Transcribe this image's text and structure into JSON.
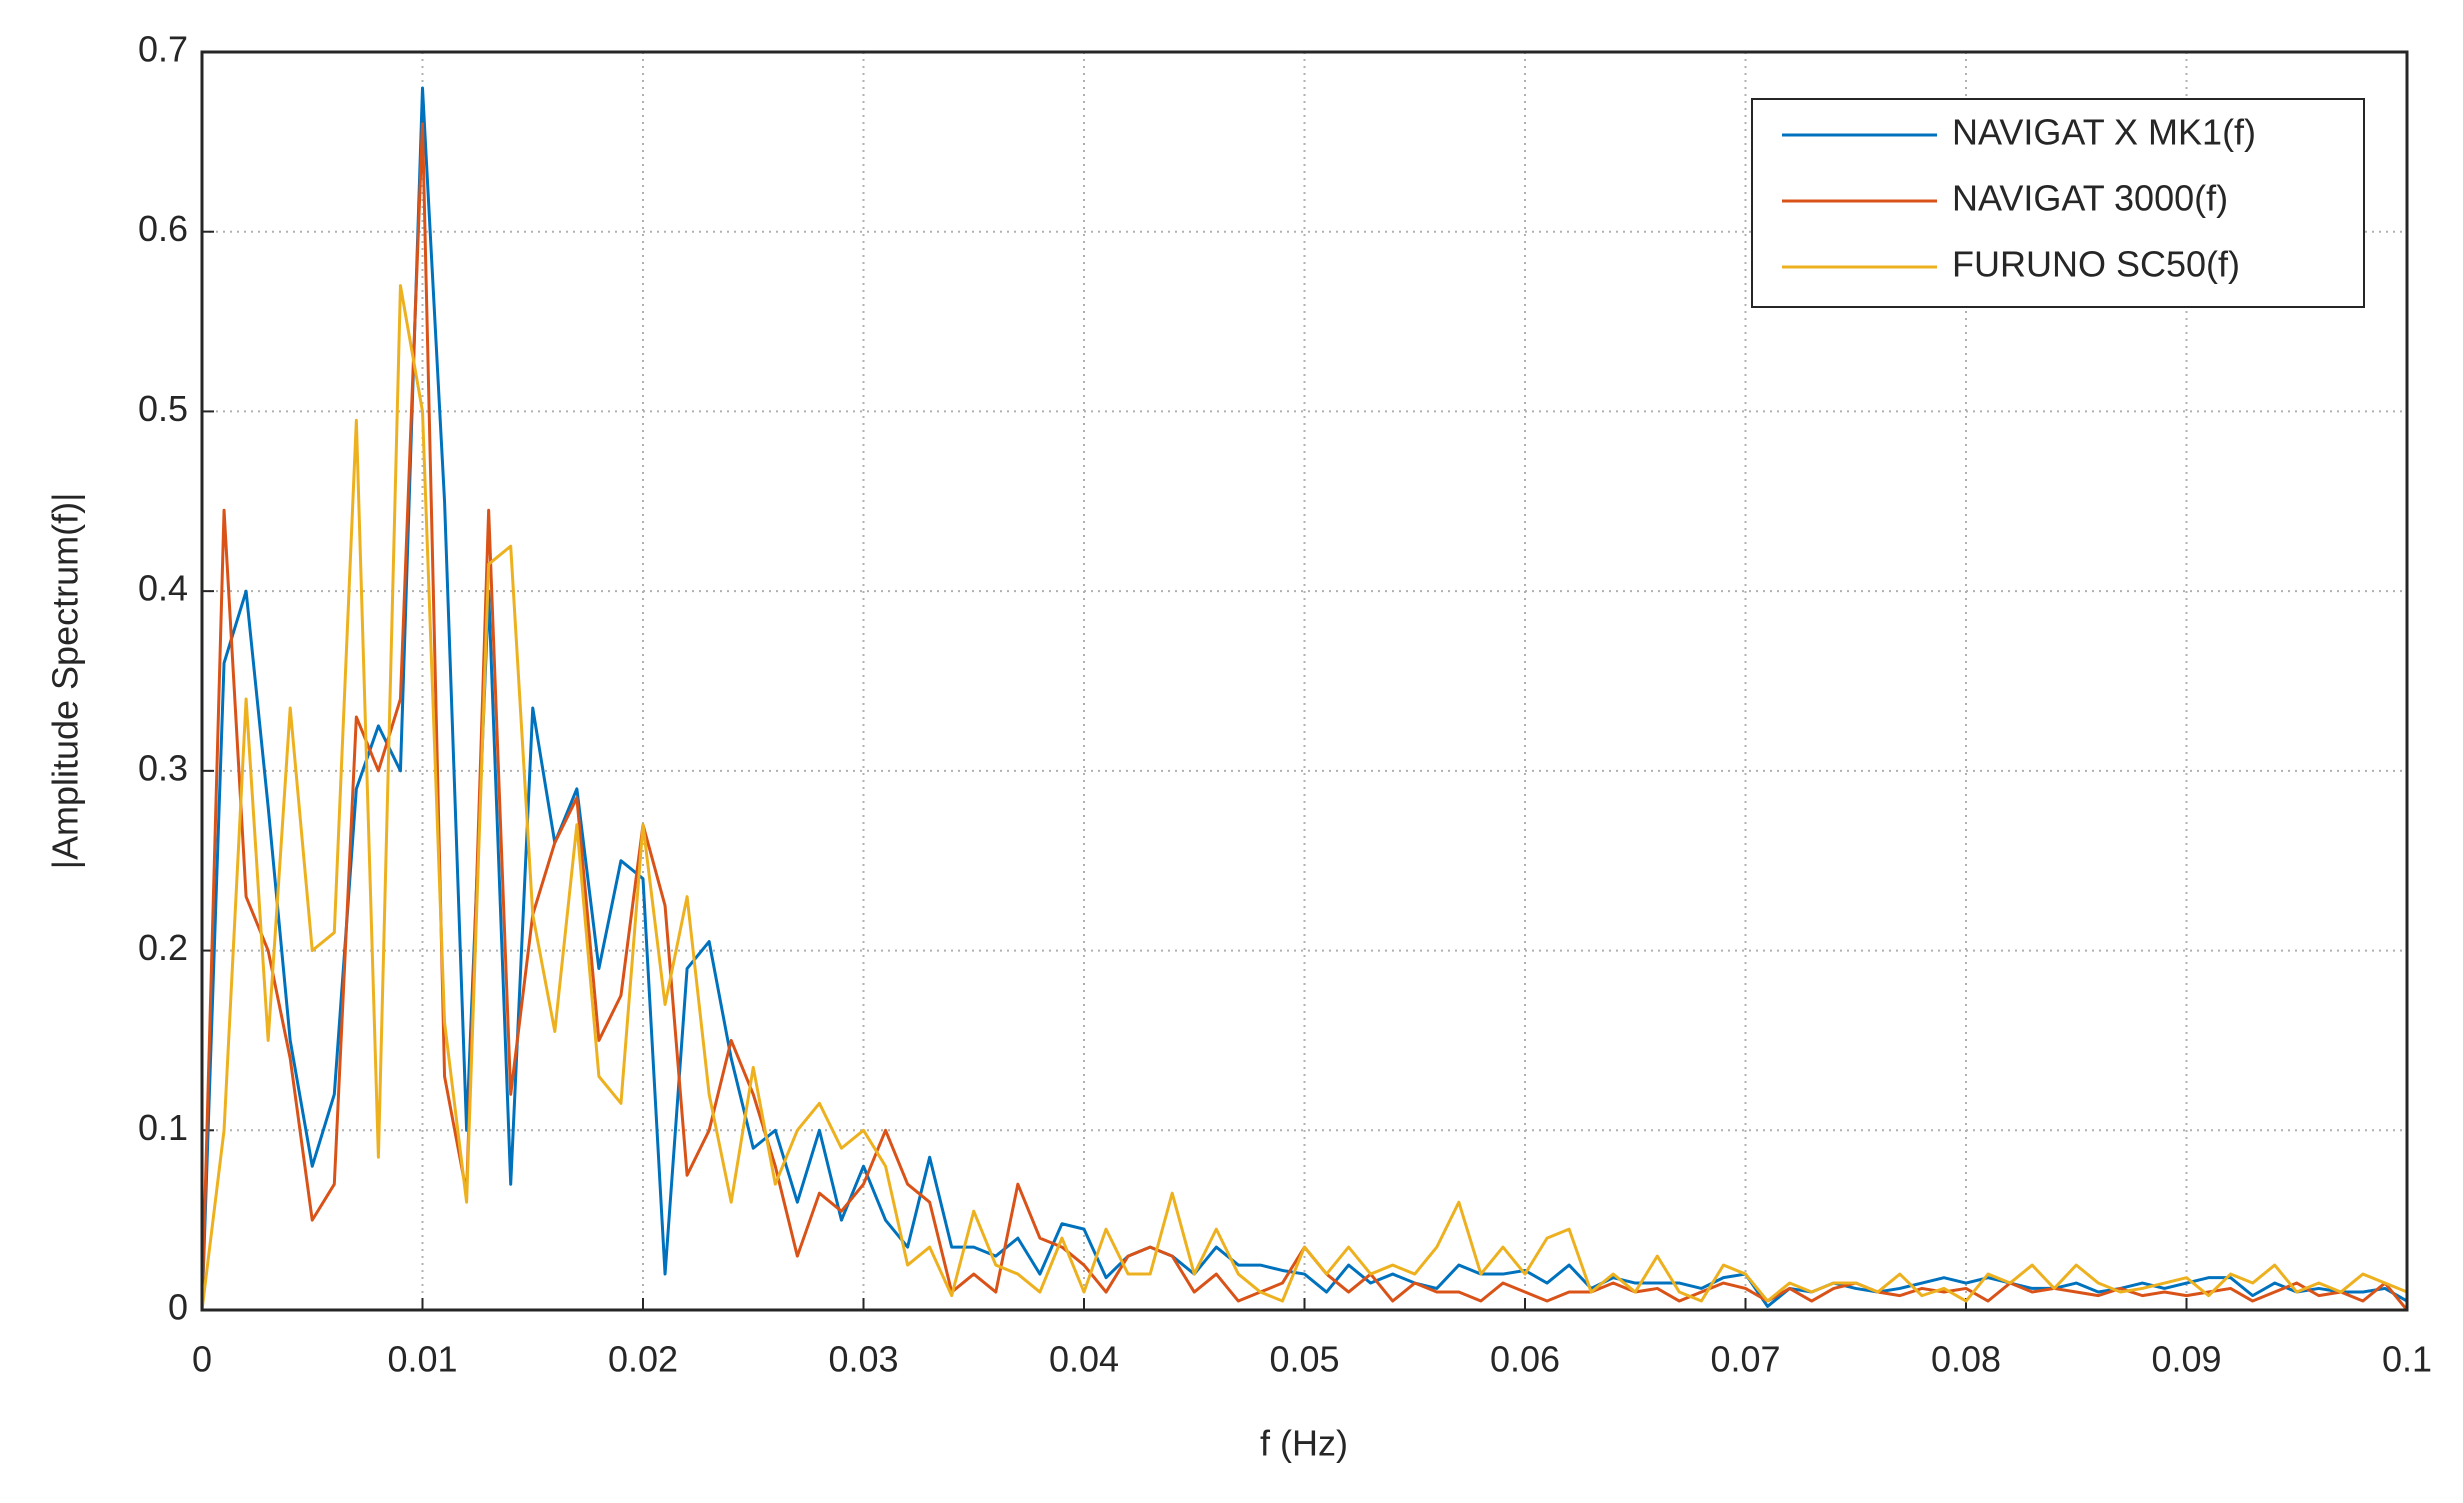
{
  "chart_data": {
    "type": "line",
    "x_label": "f (Hz)",
    "y_label": "|Amplitude Spectrum(f)|",
    "x": [
      0,
      0.001,
      0.002,
      0.003,
      0.004,
      0.005,
      0.006,
      0.007,
      0.008,
      0.009,
      0.01,
      0.011,
      0.012,
      0.013,
      0.014,
      0.015,
      0.016,
      0.017,
      0.018,
      0.019,
      0.02,
      0.021,
      0.022,
      0.023,
      0.024,
      0.025,
      0.026,
      0.027,
      0.028,
      0.029,
      0.03,
      0.031,
      0.032,
      0.033,
      0.034,
      0.035,
      0.036,
      0.037,
      0.038,
      0.039,
      0.04,
      0.041,
      0.042,
      0.043,
      0.044,
      0.045,
      0.046,
      0.047,
      0.048,
      0.049,
      0.05,
      0.051,
      0.052,
      0.053,
      0.054,
      0.055,
      0.056,
      0.057,
      0.058,
      0.059,
      0.06,
      0.061,
      0.062,
      0.063,
      0.064,
      0.065,
      0.066,
      0.067,
      0.068,
      0.069,
      0.07,
      0.071,
      0.072,
      0.073,
      0.074,
      0.075,
      0.076,
      0.077,
      0.078,
      0.079,
      0.08,
      0.081,
      0.082,
      0.083,
      0.084,
      0.085,
      0.086,
      0.087,
      0.088,
      0.089,
      0.09,
      0.091,
      0.092,
      0.093,
      0.094,
      0.095,
      0.096,
      0.097,
      0.098,
      0.099,
      0.1
    ],
    "series": [
      {
        "name": "NAVIGAT X MK1(f)",
        "color": "#0072bd",
        "values": [
          0,
          0.36,
          0.4,
          0.28,
          0.15,
          0.08,
          0.12,
          0.29,
          0.325,
          0.3,
          0.68,
          0.45,
          0.1,
          0.4,
          0.07,
          0.335,
          0.26,
          0.29,
          0.19,
          0.25,
          0.24,
          0.02,
          0.19,
          0.205,
          0.14,
          0.09,
          0.1,
          0.06,
          0.1,
          0.05,
          0.08,
          0.05,
          0.035,
          0.085,
          0.035,
          0.035,
          0.03,
          0.04,
          0.02,
          0.048,
          0.045,
          0.018,
          0.03,
          0.035,
          0.03,
          0.02,
          0.035,
          0.025,
          0.025,
          0.022,
          0.02,
          0.01,
          0.025,
          0.015,
          0.02,
          0.015,
          0.012,
          0.025,
          0.02,
          0.02,
          0.022,
          0.015,
          0.025,
          0.012,
          0.018,
          0.015,
          0.015,
          0.015,
          0.012,
          0.018,
          0.02,
          0.002,
          0.012,
          0.01,
          0.015,
          0.012,
          0.01,
          0.012,
          0.015,
          0.018,
          0.015,
          0.018,
          0.015,
          0.012,
          0.012,
          0.015,
          0.01,
          0.012,
          0.015,
          0.012,
          0.015,
          0.018,
          0.018,
          0.008,
          0.015,
          0.01,
          0.012,
          0.01,
          0.01,
          0.012,
          0.005
        ]
      },
      {
        "name": "NAVIGAT 3000(f)",
        "color": "#d95319",
        "values": [
          0,
          0.445,
          0.23,
          0.2,
          0.14,
          0.05,
          0.07,
          0.33,
          0.3,
          0.34,
          0.66,
          0.13,
          0.065,
          0.445,
          0.12,
          0.22,
          0.26,
          0.285,
          0.15,
          0.175,
          0.27,
          0.225,
          0.075,
          0.1,
          0.15,
          0.12,
          0.08,
          0.03,
          0.065,
          0.055,
          0.07,
          0.1,
          0.07,
          0.06,
          0.01,
          0.02,
          0.01,
          0.07,
          0.04,
          0.035,
          0.025,
          0.01,
          0.03,
          0.035,
          0.03,
          0.01,
          0.02,
          0.005,
          0.01,
          0.015,
          0.035,
          0.02,
          0.01,
          0.02,
          0.005,
          0.015,
          0.01,
          0.01,
          0.005,
          0.015,
          0.01,
          0.005,
          0.01,
          0.01,
          0.015,
          0.01,
          0.012,
          0.005,
          0.01,
          0.015,
          0.012,
          0.005,
          0.012,
          0.005,
          0.012,
          0.015,
          0.01,
          0.008,
          0.012,
          0.01,
          0.012,
          0.005,
          0.015,
          0.01,
          0.012,
          0.01,
          0.008,
          0.012,
          0.008,
          0.01,
          0.008,
          0.01,
          0.012,
          0.005,
          0.01,
          0.015,
          0.008,
          0.01,
          0.005,
          0.015,
          0
        ]
      },
      {
        "name": "FURUNO SC50(f)",
        "color": "#edb120",
        "values": [
          0,
          0.1,
          0.34,
          0.15,
          0.335,
          0.2,
          0.21,
          0.495,
          0.085,
          0.57,
          0.5,
          0.16,
          0.06,
          0.415,
          0.425,
          0.22,
          0.155,
          0.27,
          0.13,
          0.115,
          0.27,
          0.17,
          0.23,
          0.12,
          0.06,
          0.135,
          0.07,
          0.1,
          0.115,
          0.09,
          0.1,
          0.08,
          0.025,
          0.035,
          0.008,
          0.055,
          0.025,
          0.02,
          0.01,
          0.04,
          0.01,
          0.045,
          0.02,
          0.02,
          0.065,
          0.02,
          0.045,
          0.02,
          0.01,
          0.005,
          0.035,
          0.02,
          0.035,
          0.02,
          0.025,
          0.02,
          0.035,
          0.06,
          0.02,
          0.035,
          0.02,
          0.04,
          0.045,
          0.01,
          0.02,
          0.01,
          0.03,
          0.01,
          0.005,
          0.025,
          0.02,
          0.005,
          0.015,
          0.01,
          0.015,
          0.015,
          0.01,
          0.02,
          0.008,
          0.012,
          0.005,
          0.02,
          0.015,
          0.025,
          0.012,
          0.025,
          0.015,
          0.01,
          0.012,
          0.015,
          0.018,
          0.008,
          0.02,
          0.015,
          0.025,
          0.01,
          0.015,
          0.01,
          0.02,
          0.015,
          0.01
        ]
      }
    ],
    "xlim": [
      0,
      0.1
    ],
    "xticks": [
      0,
      0.01,
      0.02,
      0.03,
      0.04,
      0.05,
      0.06,
      0.07,
      0.08,
      0.09,
      0.1
    ],
    "ylim": [
      0,
      0.7
    ],
    "yticks": [
      0,
      0.1,
      0.2,
      0.3,
      0.4,
      0.5,
      0.6,
      0.7
    ],
    "grid": true,
    "legend": "upper right"
  }
}
